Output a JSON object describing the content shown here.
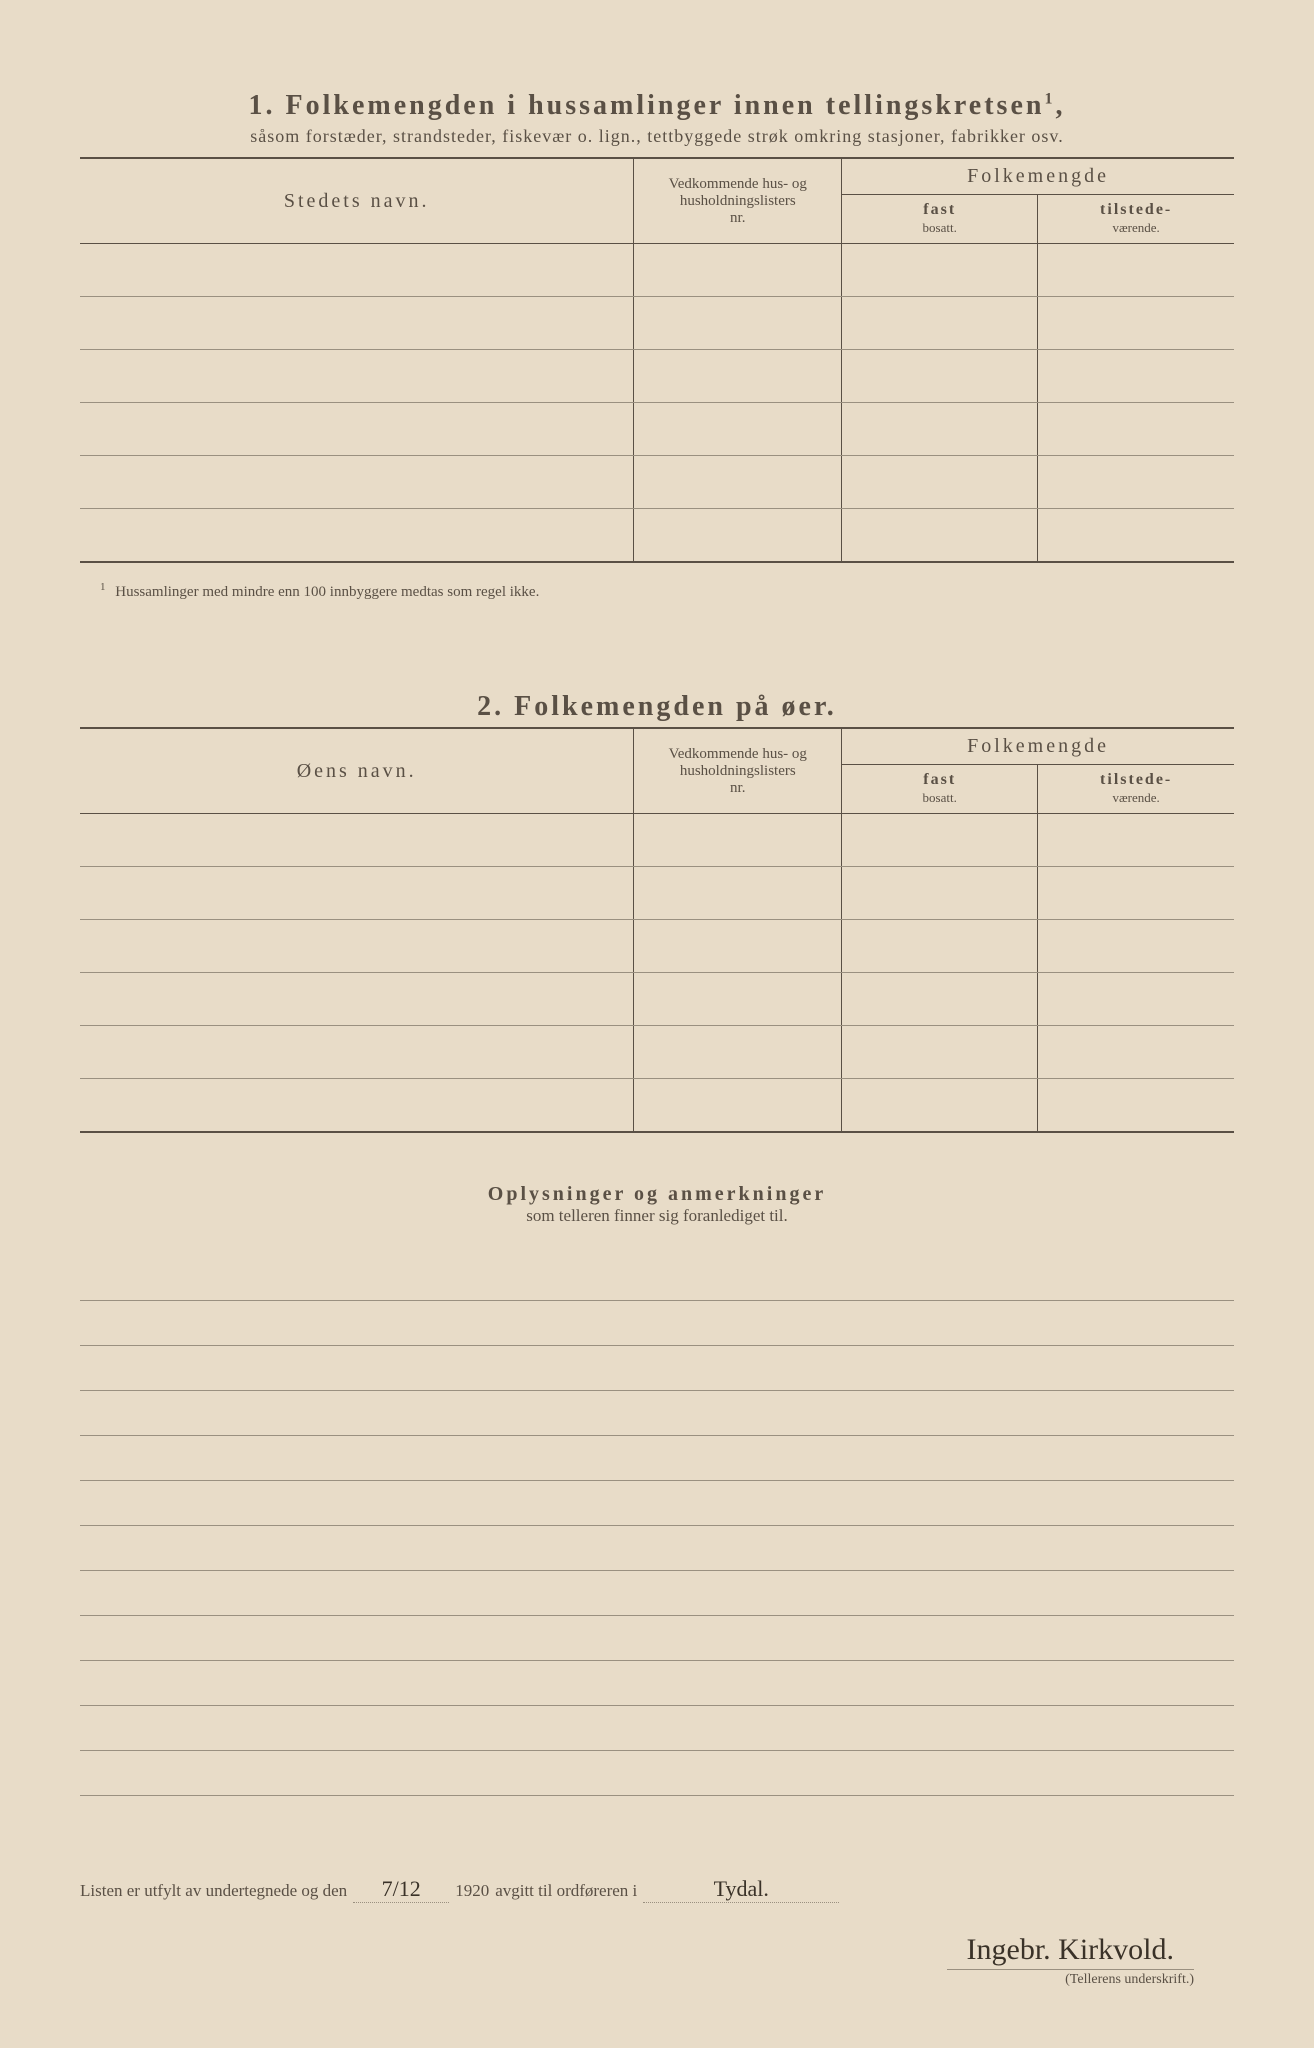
{
  "section1": {
    "number": "1.",
    "title": "Folkemengden i hussamlinger innen tellingskretsen",
    "sup": "1",
    "subtitle": "såsom forstæder, strandsteder, fiskevær o. lign., tettbyggede strøk omkring stasjoner, fabrikker osv.",
    "col_name": "Stedets navn.",
    "col_list_l1": "Vedkommende hus- og",
    "col_list_l2": "husholdningslisters",
    "col_list_l3": "nr.",
    "col_pop": "Folkemengde",
    "col_fast_l1": "fast",
    "col_fast_l2": "bosatt.",
    "col_til_l1": "tilstede-",
    "col_til_l2": "værende.",
    "footnote_mark": "1",
    "footnote": "Hussamlinger med mindre enn 100 innbyggere medtas som regel ikke."
  },
  "section2": {
    "number": "2.",
    "title": "Folkemengden på øer.",
    "col_name": "Øens navn.",
    "col_list_l1": "Vedkommende hus- og",
    "col_list_l2": "husholdningslisters",
    "col_list_l3": "nr.",
    "col_pop": "Folkemengde",
    "col_fast_l1": "fast",
    "col_fast_l2": "bosatt.",
    "col_til_l1": "tilstede-",
    "col_til_l2": "værende."
  },
  "remarks": {
    "title": "Oplysninger og anmerkninger",
    "subtitle": "som telleren finner sig foranlediget til."
  },
  "footer": {
    "text1": "Listen er utfylt av undertegnede og den",
    "date": "7/12",
    "year": "1920",
    "text2": "avgitt til ordføreren i",
    "place": "Tydal.",
    "signature": "Ingebr. Kirkvold.",
    "sig_label": "(Tellerens underskrift.)"
  },
  "layout": {
    "rows_per_table": 6,
    "ruled_lines": 12
  }
}
